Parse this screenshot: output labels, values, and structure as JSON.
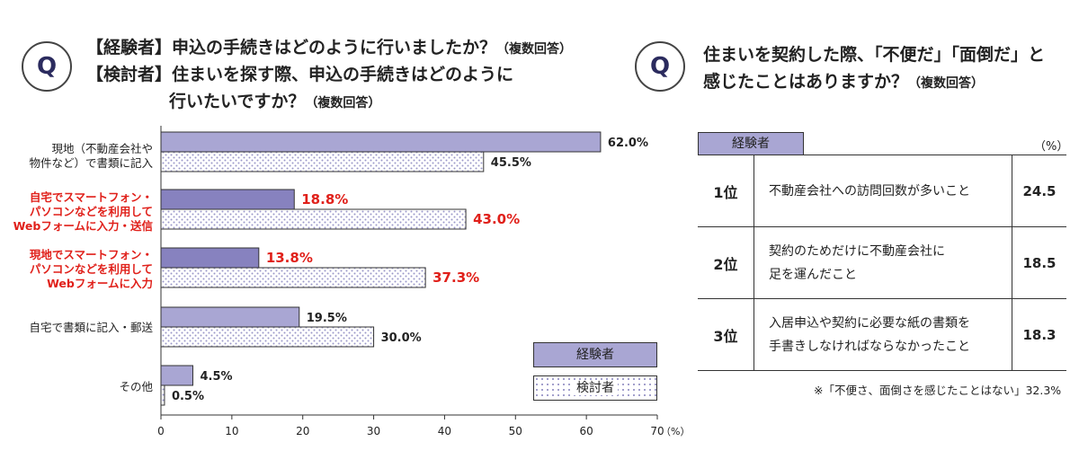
{
  "left_question": {
    "icon": "Q",
    "line1_tag": "【経験者】",
    "line1": "申込の手続きはどのように行いましたか？",
    "line1_note": "（複数回答）",
    "line2_tag": "【検討者】",
    "line2": "住まいを探す際、申込の手続きはどのように",
    "line3": "行いたいですか？",
    "line3_note": "（複数回答）"
  },
  "right_question": {
    "icon": "Q",
    "line1": "住まいを契約した際、「不便だ」「面倒だ」と",
    "line2": "感じたことはありますか？",
    "line2_note": "（複数回答）"
  },
  "chart_data": {
    "type": "bar",
    "orientation": "horizontal",
    "categories": [
      [
        "現地（不動産会社や",
        "物件など）で書類に記入"
      ],
      [
        "自宅でスマートフォン・",
        "パソコンなどを利用して",
        "Webフォームに入力・送信"
      ],
      [
        "現地でスマートフォン・",
        "パソコンなどを利用して",
        "Webフォームに入力"
      ],
      [
        "自宅で書類に記入・郵送"
      ],
      [
        "その他"
      ]
    ],
    "highlighted": [
      false,
      true,
      true,
      false,
      false
    ],
    "series": [
      {
        "name": "経験者",
        "values": [
          62.0,
          18.8,
          13.8,
          19.5,
          4.5
        ],
        "labels": [
          "62.0%",
          "18.8%",
          "13.8%",
          "19.5%",
          "4.5%"
        ]
      },
      {
        "name": "検討者",
        "values": [
          45.5,
          43.0,
          37.3,
          30.0,
          0.5
        ],
        "labels": [
          "45.5%",
          "43.0%",
          "37.3%",
          "30.0%",
          "0.5%"
        ]
      }
    ],
    "xlim": [
      0,
      70
    ],
    "xticks": [
      "0",
      "10",
      "20",
      "30",
      "40",
      "50",
      "60",
      "70"
    ],
    "xunit": "（%）",
    "colors": {
      "experienced": "#a9a6d3",
      "experienced_highlight": "#8782bf",
      "considering_dots": "#9a97c8",
      "highlight_text": "#e0201a"
    },
    "legend_position": "bottom-right"
  },
  "table": {
    "header": "経験者",
    "unit": "（%）",
    "rows": [
      {
        "rank": "1位",
        "lines": [
          "不動産会社への訪問回数が多いこと"
        ],
        "value": "24.5"
      },
      {
        "rank": "2位",
        "lines": [
          "契約のためだけに不動産会社に",
          "足を運んだこと"
        ],
        "value": "18.5"
      },
      {
        "rank": "3位",
        "lines": [
          "入居申込や契約に必要な紙の書類を",
          "手書きしなければならなかったこと"
        ],
        "value": "18.3"
      }
    ],
    "note": "※「不便さ、面倒さを感じたことはない」32.3%"
  }
}
